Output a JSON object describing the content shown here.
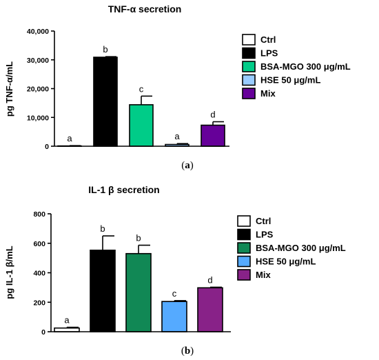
{
  "chart_data": [
    {
      "type": "bar",
      "title": "TNF-α secretion",
      "ylabel": "pg TNF-α/mL",
      "xlabel": "",
      "ylim": [
        0,
        40000
      ],
      "yticks": [
        0,
        10000,
        20000,
        30000,
        40000
      ],
      "ytick_labels": [
        "0",
        "10,000",
        "20,000",
        "30,000",
        "40,000"
      ],
      "legend_position": "right",
      "grid": false,
      "panel_label": "a",
      "categories": [
        "Ctrl",
        "LPS",
        "BSA-MGO 300 μg/mL",
        "HSE 50 μg/mL",
        "Mix"
      ],
      "values": [
        100,
        30900,
        14400,
        600,
        7300
      ],
      "errors": [
        100,
        200,
        3000,
        300,
        1200
      ],
      "colors": [
        "#ffffff",
        "#000000",
        "#00cc88",
        "#99ccff",
        "#660099"
      ],
      "significance": [
        "a",
        "b",
        "c",
        "a",
        "d"
      ],
      "legend": [
        "Ctrl",
        "LPS",
        "BSA-MGO 300 μg/mL",
        "HSE 50 μg/mL",
        "Mix"
      ]
    },
    {
      "type": "bar",
      "title": "IL-1 β secretion",
      "ylabel": "pg IL-1 β/mL",
      "xlabel": "",
      "ylim": [
        0,
        800
      ],
      "yticks": [
        0,
        200,
        400,
        600,
        800
      ],
      "ytick_labels": [
        "0",
        "200",
        "400",
        "600",
        "800"
      ],
      "legend_position": "right",
      "grid": false,
      "panel_label": "b",
      "categories": [
        "Ctrl",
        "LPS",
        "BSA-MGO 300 μg/mL",
        "HSE 50 μg/mL",
        "Mix"
      ],
      "values": [
        25,
        553,
        530,
        205,
        298
      ],
      "errors": [
        5,
        97,
        57,
        6,
        4
      ],
      "colors": [
        "#ffffff",
        "#000000",
        "#118855",
        "#55aaff",
        "#882288"
      ],
      "significance": [
        "a",
        "b",
        "b",
        "c",
        "d"
      ],
      "legend": [
        "Ctrl",
        "LPS",
        "BSA-MGO 300 μg/mL",
        "HSE 50 μg/mL",
        "Mix"
      ]
    }
  ]
}
